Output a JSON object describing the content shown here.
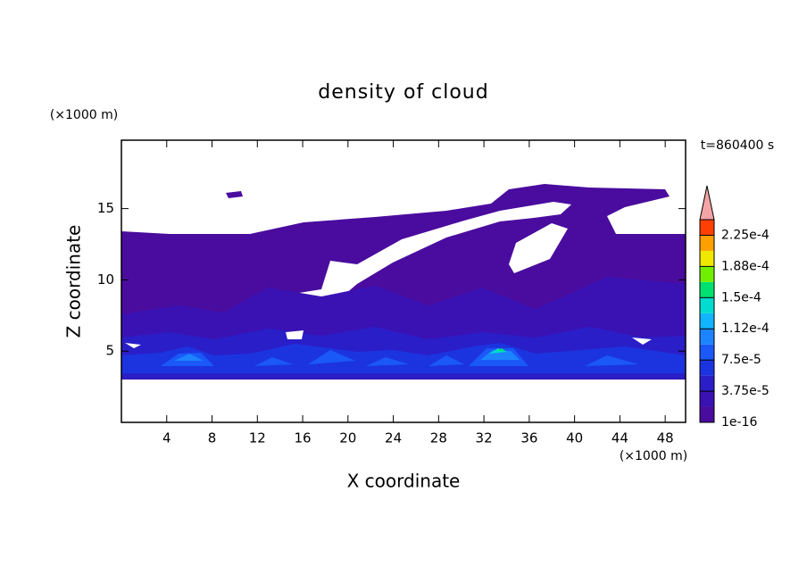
{
  "chart_data": {
    "type": "contour",
    "title": "density of cloud",
    "x_label": "X coordinate",
    "y_label": "Z coordinate",
    "x_unit": "(×1000 m)",
    "y_unit": "(×1000 m)",
    "time_label": "t=860400 s",
    "xlim": [
      0,
      49.8
    ],
    "ylim": [
      0,
      19.8
    ],
    "xticks": [
      4,
      8,
      12,
      16,
      20,
      24,
      28,
      32,
      36,
      40,
      44,
      48
    ],
    "yticks": [
      5,
      10,
      15
    ],
    "colorbar": {
      "lim": [
        1e-16,
        0.00024375
      ],
      "colors": [
        "#4a0c9e",
        "#3a12b4",
        "#2a1ec8",
        "#1c34e0",
        "#1a58f8",
        "#1c84ff",
        "#12b4ff",
        "#00dcd0",
        "#00e070",
        "#70f000",
        "#f0e800",
        "#ffa000",
        "#ff4000"
      ],
      "extend": "max",
      "extend_color": "#f4a4a4",
      "ticks": [
        {
          "value": 1e-16,
          "label": "1e-16"
        },
        {
          "value": 3.75e-05,
          "label": "3.75e-5"
        },
        {
          "value": 7.5e-05,
          "label": "7.5e-5"
        },
        {
          "value": 0.0001125,
          "label": "1.12e-4"
        },
        {
          "value": 0.00015,
          "label": "1.5e-4"
        },
        {
          "value": 0.0001875,
          "label": "1.88e-4"
        },
        {
          "value": 0.000225,
          "label": "2.25e-4"
        }
      ]
    }
  }
}
